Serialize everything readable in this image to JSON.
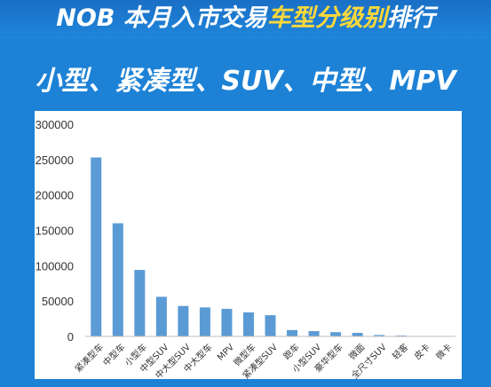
{
  "header": {
    "title_prefix": "NOB 本月入市交易",
    "title_highlight": "车型分级别",
    "title_suffix": "排行",
    "highlight_color": "#ffd83a",
    "background_color": "#1d82d6"
  },
  "subtitle": "小型、紧凑型、SUV、中型、MPV",
  "chart_data": {
    "type": "bar",
    "title": "",
    "xlabel": "",
    "ylabel": "",
    "categories": [
      "紧凑型车",
      "中型车",
      "小型车",
      "中型SUV",
      "中大型SUV",
      "中大型车",
      "MPV",
      "微型车",
      "紧凑型SUV",
      "跑车",
      "小型SUV",
      "豪华型车",
      "微面",
      "全尺寸SUV",
      "轻客",
      "皮卡",
      "微卡"
    ],
    "values": [
      253000,
      160000,
      94000,
      56000,
      43000,
      41000,
      39000,
      34000,
      30000,
      9000,
      7500,
      6000,
      5000,
      2000,
      1200,
      300,
      100
    ],
    "ylim": [
      0,
      300000
    ],
    "yticks": [
      0,
      50000,
      100000,
      150000,
      200000,
      250000,
      300000
    ],
    "grid": false,
    "legend": "none",
    "bar_color": "#5b9bd5"
  }
}
